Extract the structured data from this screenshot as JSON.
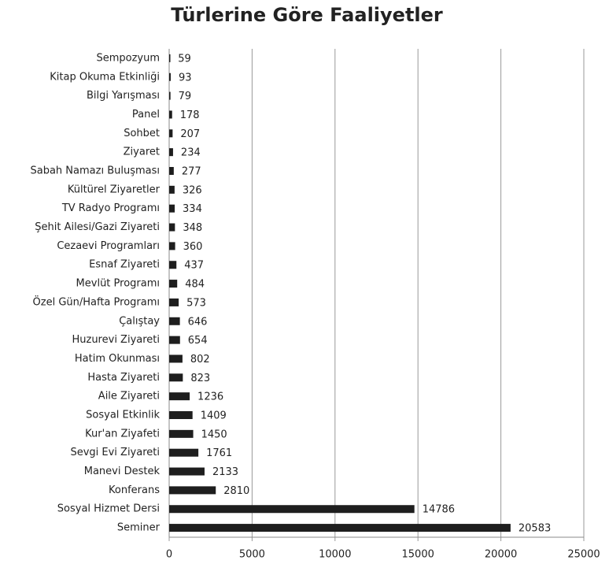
{
  "chart_data": {
    "type": "bar",
    "orientation": "horizontal",
    "title": "Türlerine Göre Faaliyetler",
    "categories": [
      "Sempozyum",
      "Kitap Okuma Etkinliği",
      "Bilgi Yarışması",
      "Panel",
      "Sohbet",
      "Ziyaret",
      "Sabah Namazı Buluşması",
      "Kültürel Ziyaretler",
      "TV Radyo Programı",
      "Şehit Ailesi/Gazi Ziyareti",
      "Cezaevi Programları",
      "Esnaf Ziyareti",
      "Mevlüt Programı",
      "Özel Gün/Hafta Programı",
      "Çalıştay",
      "Huzurevi Ziyareti",
      "Hatim Okunması",
      "Hasta Ziyareti",
      "Aile Ziyareti",
      "Sosyal Etkinlik",
      "Kur'an Ziyafeti",
      "Sevgi Evi Ziyareti",
      "Manevi Destek",
      "Konferans",
      "Sosyal Hizmet Dersi",
      "Seminer"
    ],
    "values": [
      59,
      93,
      79,
      178,
      207,
      234,
      277,
      326,
      334,
      348,
      360,
      437,
      484,
      573,
      646,
      654,
      802,
      823,
      1236,
      1409,
      1450,
      1761,
      2133,
      2810,
      14786,
      20583
    ],
    "color": "#1e1e1e",
    "xlim": [
      0,
      25000
    ],
    "xticks": [
      0,
      5000,
      10000,
      15000,
      20000,
      25000
    ],
    "grid": true
  }
}
